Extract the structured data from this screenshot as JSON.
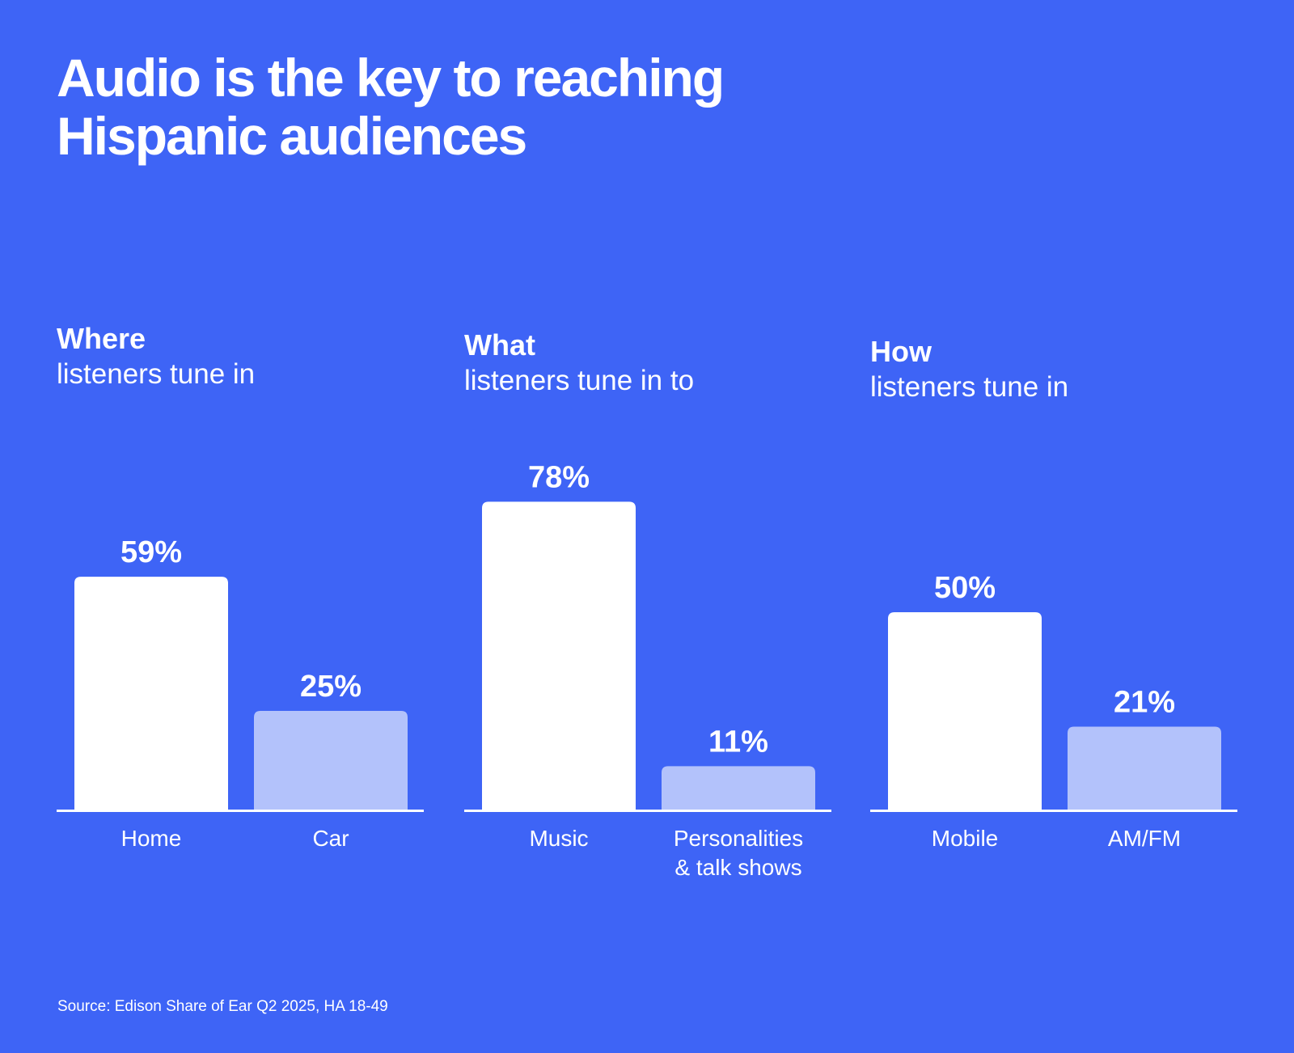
{
  "title": {
    "line1": "Audio is the key to reaching",
    "line2": "Hispanic audiences"
  },
  "colors": {
    "background": "#3e64f6",
    "primary_bar": "#ffffff",
    "secondary_bar": "#b3c2fb"
  },
  "chart_data": [
    {
      "type": "bar",
      "heading_strong": "Where",
      "heading_light": "listeners tune in",
      "categories": [
        "Home",
        "Car"
      ],
      "values": [
        59,
        25
      ],
      "value_labels": [
        "59%",
        "25%"
      ],
      "ylim": [
        0,
        100
      ]
    },
    {
      "type": "bar",
      "heading_strong": "What",
      "heading_light": "listeners tune in to",
      "categories": [
        "Music",
        "Personalities\n& talk shows"
      ],
      "values": [
        78,
        11
      ],
      "value_labels": [
        "78%",
        "11%"
      ],
      "ylim": [
        0,
        100
      ]
    },
    {
      "type": "bar",
      "heading_strong": "How",
      "heading_light": "listeners tune in",
      "categories": [
        "Mobile",
        "AM/FM"
      ],
      "values": [
        50,
        21
      ],
      "value_labels": [
        "50%",
        "21%"
      ],
      "ylim": [
        0,
        100
      ]
    }
  ],
  "source": "Source: Edison Share of Ear Q2 2025, HA 18-49"
}
